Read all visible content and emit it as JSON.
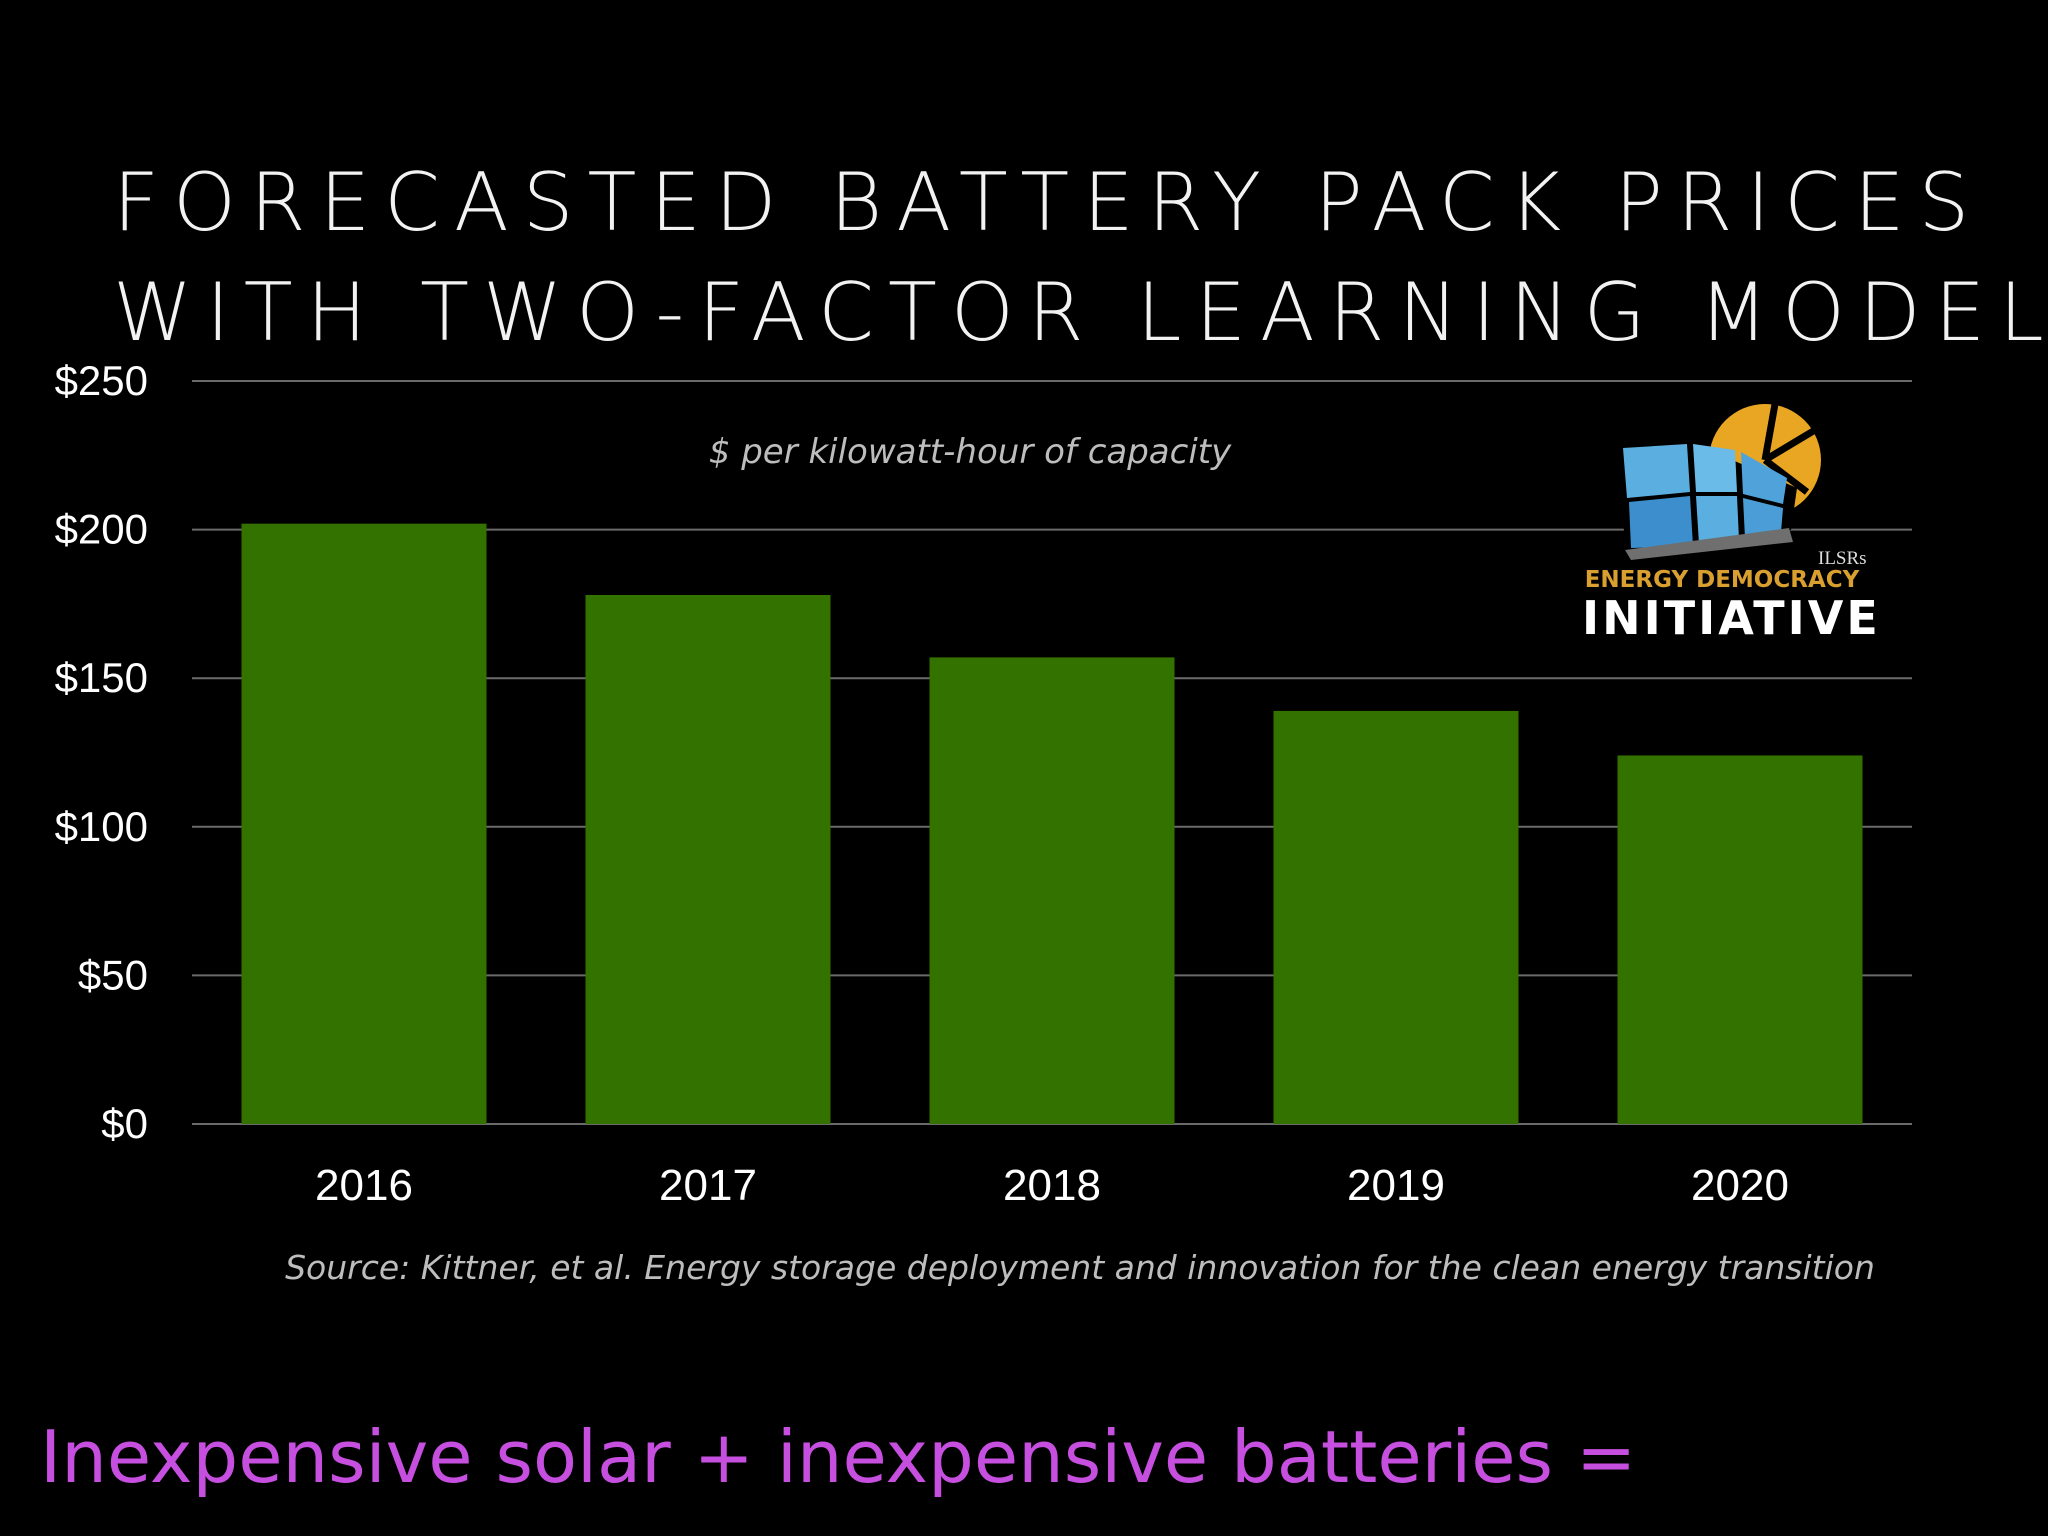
{
  "title_line1": "FORECASTED BATTERY PACK PRICES",
  "title_line2": "WITH TWO-FACTOR LEARNING MODEL",
  "logo": {
    "ilsr": "ILSRs",
    "line1": "ENERGY DEMOCRACY",
    "line2": "INITIATIVE",
    "colors": {
      "sun": "#e8a623",
      "panel": "#5aaee0",
      "text_gold": "#d9a030"
    }
  },
  "tagline": "Inexpensive solar + inexpensive batteries =",
  "chart_data": {
    "type": "bar",
    "title": "FORECASTED BATTERY PACK PRICES WITH TWO-FACTOR LEARNING MODEL",
    "subtitle": "$ per kilowatt-hour of capacity",
    "categories": [
      "2016",
      "2017",
      "2018",
      "2019",
      "2020"
    ],
    "values": [
      202,
      178,
      157,
      139,
      124
    ],
    "ylim": [
      0,
      250
    ],
    "yticks": [
      0,
      50,
      100,
      150,
      200,
      250
    ],
    "ytick_labels": [
      "$0",
      "$50",
      "$100",
      "$150",
      "$200",
      "$250"
    ],
    "xlabel": "",
    "ylabel": "",
    "source": "Source: Kittner, et al. Energy storage deployment and innovation for the clean energy transition",
    "grid": true,
    "bar_color": "#347200",
    "background": "#000000"
  }
}
